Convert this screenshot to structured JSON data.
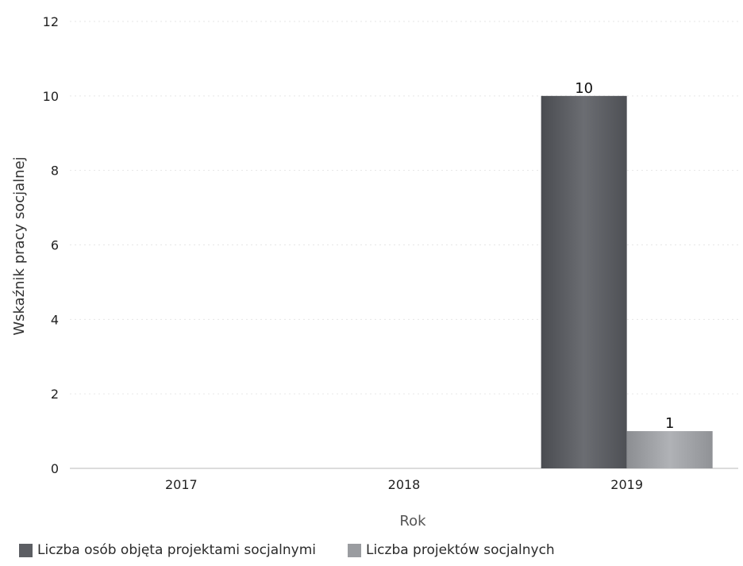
{
  "chart_data": {
    "type": "bar",
    "title": "",
    "xlabel": "Rok",
    "ylabel": "Wskaźnik pracy socjalnej",
    "categories": [
      "2017",
      "2018",
      "2019"
    ],
    "ylim": [
      0,
      12
    ],
    "yticks": [
      0,
      2,
      4,
      6,
      8,
      10,
      12
    ],
    "grid": true,
    "legend_position": "bottom-left",
    "series": [
      {
        "name": "Liczba osób objęta projektami socjalnymi",
        "values": [
          0,
          0,
          10
        ],
        "data_labels": [
          "",
          "",
          "10"
        ],
        "color": "#5c5e63"
      },
      {
        "name": "Liczba projektów socjalnych",
        "values": [
          0,
          0,
          1
        ],
        "data_labels": [
          "",
          "",
          "1"
        ],
        "color": "#9a9ca0"
      }
    ]
  }
}
